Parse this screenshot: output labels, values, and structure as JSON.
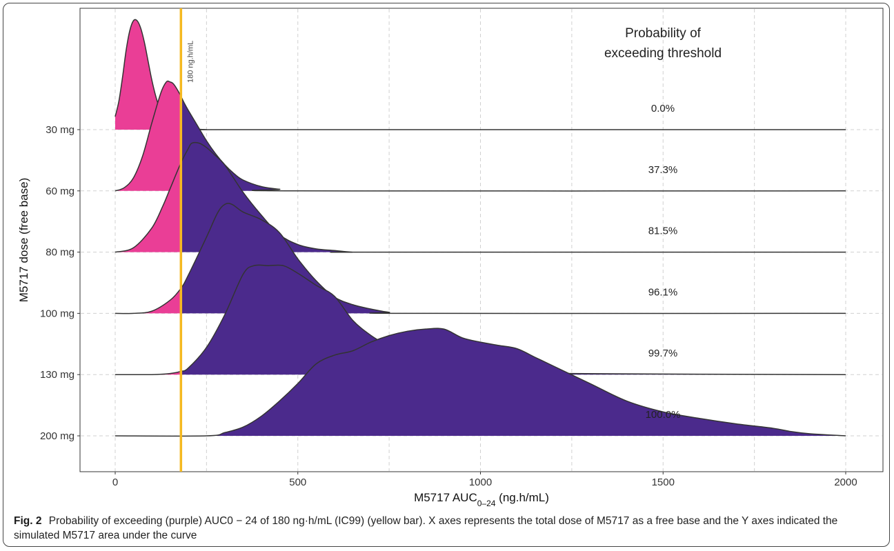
{
  "chart_data": {
    "type": "ridgeline",
    "xlabel": "M5717 AUC0–24 (ng.h/mL)",
    "ylabel": "M5717 dose (free base)",
    "xlim": [
      0,
      2000
    ],
    "x_ticks": [
      0,
      500,
      1000,
      1500,
      2000
    ],
    "threshold": {
      "value": 180,
      "label": "180 ng.h/mL",
      "color": "#f5b921"
    },
    "prob_header": [
      "Probability of",
      "exceeding threshold"
    ],
    "colors": {
      "below": "#ea3e96",
      "above": "#4b2a8c",
      "threshold": "#f5b921"
    },
    "series": [
      {
        "name": "30 mg",
        "probability": "0.0%",
        "x": [
          0,
          10,
          20,
          30,
          40,
          50,
          60,
          70,
          80,
          90,
          100,
          110,
          120,
          130,
          150,
          170,
          180,
          200,
          250,
          300,
          2000
        ],
        "y": [
          0.12,
          0.26,
          0.48,
          0.73,
          0.91,
          1.0,
          1.0,
          0.93,
          0.8,
          0.63,
          0.46,
          0.32,
          0.21,
          0.13,
          0.06,
          0.03,
          0.02,
          0.01,
          0.0,
          0.0,
          0.0
        ]
      },
      {
        "name": "60 mg",
        "probability": "37.3%",
        "x": [
          0,
          25,
          50,
          75,
          100,
          125,
          140,
          150,
          160,
          175,
          190,
          200,
          225,
          250,
          275,
          300,
          325,
          350,
          400,
          450,
          500,
          2000
        ],
        "y": [
          0.0,
          0.03,
          0.12,
          0.32,
          0.62,
          0.9,
          1.0,
          1.0,
          0.98,
          0.9,
          0.8,
          0.74,
          0.6,
          0.46,
          0.34,
          0.24,
          0.16,
          0.1,
          0.04,
          0.015,
          0.0,
          0.0
        ]
      },
      {
        "name": "80 mg",
        "probability": "81.5%",
        "x": [
          0,
          50,
          100,
          130,
          150,
          180,
          200,
          210,
          230,
          250,
          270,
          300,
          350,
          400,
          450,
          500,
          550,
          600,
          650,
          700,
          2000
        ],
        "y": [
          0.0,
          0.04,
          0.22,
          0.42,
          0.58,
          0.82,
          0.95,
          1.0,
          1.0,
          0.96,
          0.9,
          0.8,
          0.55,
          0.34,
          0.16,
          0.07,
          0.03,
          0.015,
          0.0,
          0.0,
          0.0
        ]
      },
      {
        "name": "100 mg",
        "probability": "96.1%",
        "x": [
          0,
          50,
          100,
          150,
          180,
          200,
          250,
          280,
          300,
          320,
          350,
          400,
          450,
          500,
          550,
          600,
          650,
          700,
          750,
          800,
          2000
        ],
        "y": [
          0.0,
          0.0,
          0.02,
          0.12,
          0.23,
          0.35,
          0.7,
          0.92,
          1.0,
          1.0,
          0.93,
          0.86,
          0.74,
          0.5,
          0.3,
          0.15,
          0.08,
          0.04,
          0.01,
          0.0,
          0.0
        ]
      },
      {
        "name": "130 mg",
        "probability": "99.7%",
        "x": [
          0,
          100,
          150,
          180,
          200,
          250,
          300,
          350,
          380,
          420,
          460,
          500,
          550,
          600,
          650,
          700,
          750,
          800,
          900,
          1000,
          1100,
          1250,
          2000
        ],
        "y": [
          0.0,
          0.0,
          0.01,
          0.03,
          0.06,
          0.25,
          0.55,
          0.92,
          1.0,
          1.0,
          1.0,
          0.93,
          0.82,
          0.72,
          0.5,
          0.36,
          0.26,
          0.18,
          0.1,
          0.06,
          0.04,
          0.01,
          0.0
        ]
      },
      {
        "name": "200 mg",
        "probability": "100.0%",
        "x": [
          0,
          250,
          300,
          350,
          400,
          450,
          500,
          550,
          600,
          650,
          700,
          750,
          800,
          850,
          900,
          950,
          1000,
          1050,
          1100,
          1150,
          1200,
          1300,
          1400,
          1500,
          1600,
          1700,
          1800,
          1850,
          1900,
          2000
        ],
        "y": [
          0.0,
          0.0,
          0.03,
          0.08,
          0.18,
          0.32,
          0.48,
          0.66,
          0.74,
          0.78,
          0.86,
          0.92,
          0.96,
          0.98,
          0.98,
          0.9,
          0.86,
          0.83,
          0.8,
          0.72,
          0.64,
          0.48,
          0.32,
          0.22,
          0.16,
          0.11,
          0.07,
          0.04,
          0.02,
          0.0
        ]
      }
    ]
  },
  "caption": {
    "figure_label": "Fig. 2",
    "text": "Probability of exceeding (purple) AUC0 − 24 of 180 ng·h/mL (IC99) (yellow bar). X axes represents the total dose of M5717 as a free base and the Y axes indicated the simulated M5717 area under the curve"
  }
}
